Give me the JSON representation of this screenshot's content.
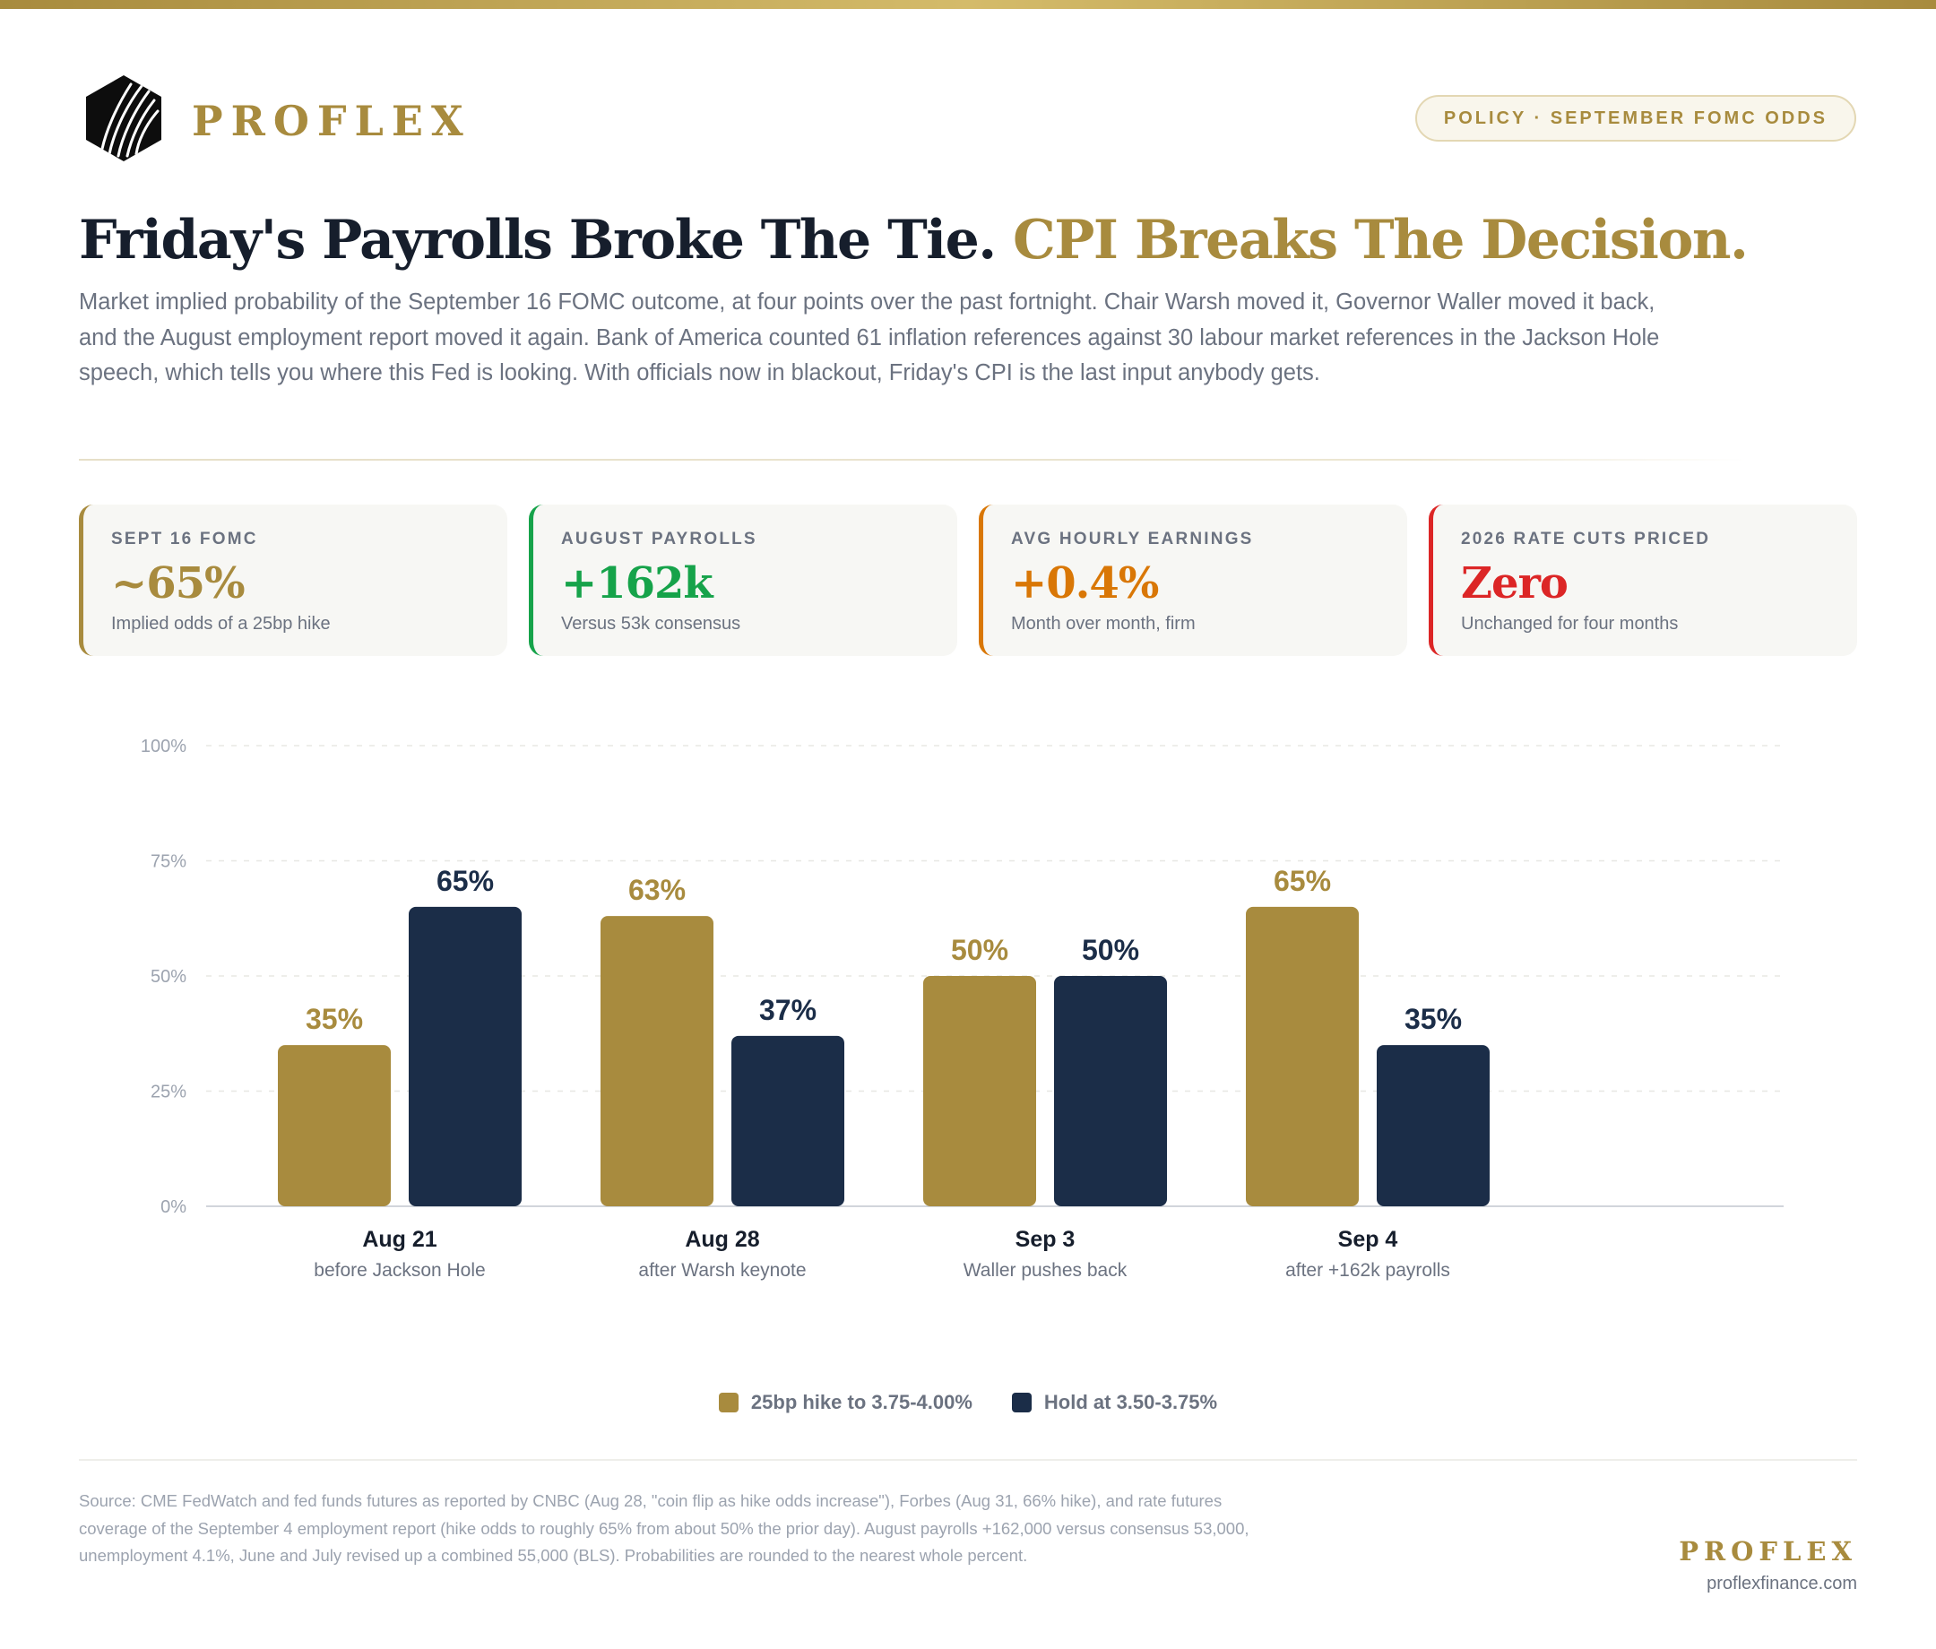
{
  "brand": {
    "name": "PROFLEX",
    "logo_icon": "hexagon-stripes-icon"
  },
  "tag": "POLICY · SEPTEMBER FOMC ODDS",
  "headline": {
    "main": "Friday's Payrolls Broke The Tie.",
    "accent": "CPI Breaks The Decision."
  },
  "subtitle": "Market implied probability of the September 16 FOMC outcome, at four points over the past fortnight. Chair Warsh moved it, Governor Waller moved it back, and the August employment report moved it again. Bank of America counted 61 inflation references against 30 labour market references in the Jackson Hole speech, which tells you where this Fed is looking. With officials now in blackout, Friday's CPI is the last input anybody gets.",
  "kpis": [
    {
      "label": "SEPT 16 FOMC",
      "value": "~65%",
      "note": "Implied odds of a 25bp hike",
      "color": "#a88b3e"
    },
    {
      "label": "AUGUST PAYROLLS",
      "value": "+162k",
      "note": "Versus 53k consensus",
      "color": "#16a34a"
    },
    {
      "label": "AVG HOURLY EARNINGS",
      "value": "+0.4%",
      "note": "Month over month, firm",
      "color": "#d97706"
    },
    {
      "label": "2026 RATE CUTS PRICED",
      "value": "Zero",
      "note": "Unchanged for four months",
      "color": "#dc2626"
    }
  ],
  "chart_data": {
    "type": "bar",
    "categories": [
      "Aug 21",
      "Aug 28",
      "Sep 3",
      "Sep 4"
    ],
    "category_sublabels": [
      "before Jackson Hole",
      "after Warsh keynote",
      "Waller pushes back",
      "after +162k payrolls"
    ],
    "series": [
      {
        "name": "25bp hike to 3.75-4.00%",
        "values": [
          35,
          63,
          50,
          65
        ],
        "color": "#a88b3e"
      },
      {
        "name": "Hold at 3.50-3.75%",
        "values": [
          65,
          37,
          50,
          35
        ],
        "color": "#1b2d48"
      }
    ],
    "ylim": [
      0,
      100
    ],
    "yticks": [
      "0%",
      "25%",
      "50%",
      "75%",
      "100%"
    ],
    "ytick_values": [
      0,
      25,
      50,
      75,
      100
    ],
    "value_suffix": "%",
    "grid": true,
    "legend": "bottom-center"
  },
  "source": "Source: CME FedWatch and fed funds futures as reported by CNBC (Aug 28, \"coin flip as hike odds increase\"), Forbes (Aug 31, 66% hike), and rate futures coverage of the September 4 employment report (hike odds to roughly 65% from about 50% the prior day). August payrolls +162,000 versus consensus 53,000, unemployment 4.1%, June and July revised up a combined 55,000 (BLS). Probabilities are rounded to the nearest whole percent.",
  "footer": {
    "brand": "PROFLEX",
    "url": "proflexfinance.com"
  }
}
